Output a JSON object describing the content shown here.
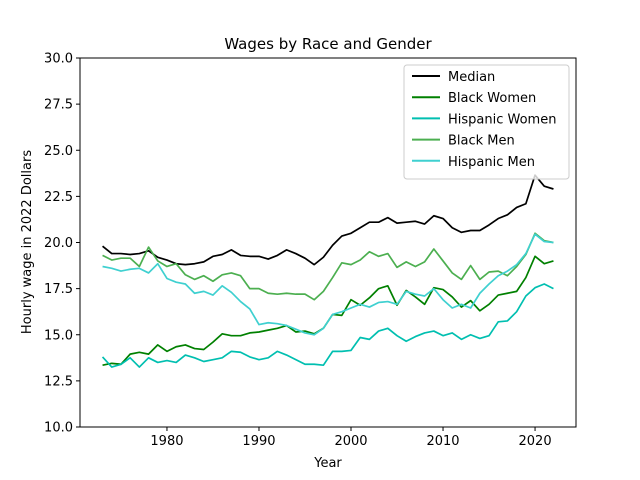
{
  "chart_data": {
    "type": "line",
    "title": "Wages by Race and Gender",
    "xlabel": "Year",
    "ylabel": "Hourly wage in 2022 Dollars",
    "xlim": [
      1970.55,
      2024.45
    ],
    "ylim": [
      10.0,
      30.0
    ],
    "xticks": [
      1980,
      1990,
      2000,
      2010,
      2020
    ],
    "yticks": [
      10.0,
      12.5,
      15.0,
      17.5,
      20.0,
      22.5,
      25.0,
      27.5,
      30.0
    ],
    "ytick_labels": [
      "10.0",
      "12.5",
      "15.0",
      "17.5",
      "20.0",
      "22.5",
      "25.0",
      "27.5",
      "30.0"
    ],
    "grid": false,
    "legend_position": "top-right",
    "x": [
      1973,
      1974,
      1975,
      1976,
      1977,
      1978,
      1979,
      1980,
      1981,
      1982,
      1983,
      1984,
      1985,
      1986,
      1987,
      1988,
      1989,
      1990,
      1991,
      1992,
      1993,
      1994,
      1995,
      1996,
      1997,
      1998,
      1999,
      2000,
      2001,
      2002,
      2003,
      2004,
      2005,
      2006,
      2007,
      2008,
      2009,
      2010,
      2011,
      2012,
      2013,
      2014,
      2015,
      2016,
      2017,
      2018,
      2019,
      2020,
      2021,
      2022
    ],
    "series": [
      {
        "name": "Median",
        "color": "#000000",
        "values": [
          19.8,
          19.4,
          19.4,
          19.35,
          19.4,
          19.55,
          19.2,
          19.05,
          18.85,
          18.8,
          18.85,
          18.95,
          19.25,
          19.35,
          19.6,
          19.3,
          19.25,
          19.25,
          19.1,
          19.3,
          19.6,
          19.4,
          19.15,
          18.8,
          19.2,
          19.85,
          20.35,
          20.5,
          20.8,
          21.1,
          21.1,
          21.35,
          21.05,
          21.1,
          21.15,
          21.0,
          21.45,
          21.3,
          20.8,
          20.55,
          20.65,
          20.65,
          20.95,
          21.3,
          21.5,
          21.9,
          22.1,
          23.65,
          23.05,
          22.9
        ]
      },
      {
        "name": "Black Women",
        "color": "#008000",
        "values": [
          13.35,
          13.45,
          13.4,
          13.95,
          14.05,
          13.95,
          14.45,
          14.1,
          14.35,
          14.45,
          14.25,
          14.2,
          14.6,
          15.05,
          14.95,
          14.95,
          15.1,
          15.15,
          15.25,
          15.35,
          15.5,
          15.15,
          15.2,
          15.05,
          15.35,
          16.1,
          16.05,
          16.9,
          16.6,
          17.0,
          17.5,
          17.65,
          16.6,
          17.4,
          17.05,
          16.65,
          17.55,
          17.45,
          17.05,
          16.5,
          16.85,
          16.3,
          16.65,
          17.15,
          17.25,
          17.35,
          18.1,
          19.25,
          18.85,
          19.0
        ]
      },
      {
        "name": "Hispanic Women",
        "color": "#00bfb0",
        "values": [
          13.8,
          13.25,
          13.4,
          13.75,
          13.25,
          13.75,
          13.5,
          13.6,
          13.5,
          13.9,
          13.75,
          13.55,
          13.65,
          13.75,
          14.1,
          14.05,
          13.8,
          13.65,
          13.75,
          14.1,
          13.9,
          13.65,
          13.4,
          13.4,
          13.35,
          14.1,
          14.1,
          14.15,
          14.85,
          14.75,
          15.2,
          15.35,
          14.95,
          14.65,
          14.9,
          15.1,
          15.2,
          14.95,
          15.1,
          14.75,
          15.0,
          14.8,
          14.95,
          15.7,
          15.75,
          16.25,
          17.1,
          17.55,
          17.75,
          17.5
        ]
      },
      {
        "name": "Black Men",
        "color": "#4caf50",
        "values": [
          19.3,
          19.05,
          19.15,
          19.15,
          18.7,
          19.75,
          19.0,
          18.7,
          18.85,
          18.25,
          18.0,
          18.2,
          17.9,
          18.25,
          18.35,
          18.2,
          17.5,
          17.5,
          17.25,
          17.2,
          17.25,
          17.2,
          17.2,
          16.9,
          17.35,
          18.1,
          18.9,
          18.8,
          19.05,
          19.5,
          19.25,
          19.4,
          18.65,
          18.95,
          18.7,
          18.95,
          19.65,
          19.0,
          18.35,
          18.0,
          18.75,
          18.0,
          18.4,
          18.45,
          18.2,
          18.7,
          19.35,
          20.5,
          20.1,
          20.0
        ]
      },
      {
        "name": "Hispanic Men",
        "color": "#3fd0d0",
        "values": [
          18.7,
          18.6,
          18.45,
          18.55,
          18.6,
          18.35,
          18.85,
          18.05,
          17.85,
          17.75,
          17.25,
          17.35,
          17.15,
          17.65,
          17.3,
          16.8,
          16.4,
          15.55,
          15.65,
          15.6,
          15.5,
          15.3,
          15.1,
          15.0,
          15.35,
          16.1,
          16.25,
          16.45,
          16.65,
          16.5,
          16.75,
          16.8,
          16.65,
          17.35,
          17.2,
          17.1,
          17.5,
          16.9,
          16.45,
          16.65,
          16.45,
          17.25,
          17.75,
          18.2,
          18.45,
          18.8,
          19.4,
          20.45,
          20.05,
          20.0
        ]
      }
    ]
  }
}
